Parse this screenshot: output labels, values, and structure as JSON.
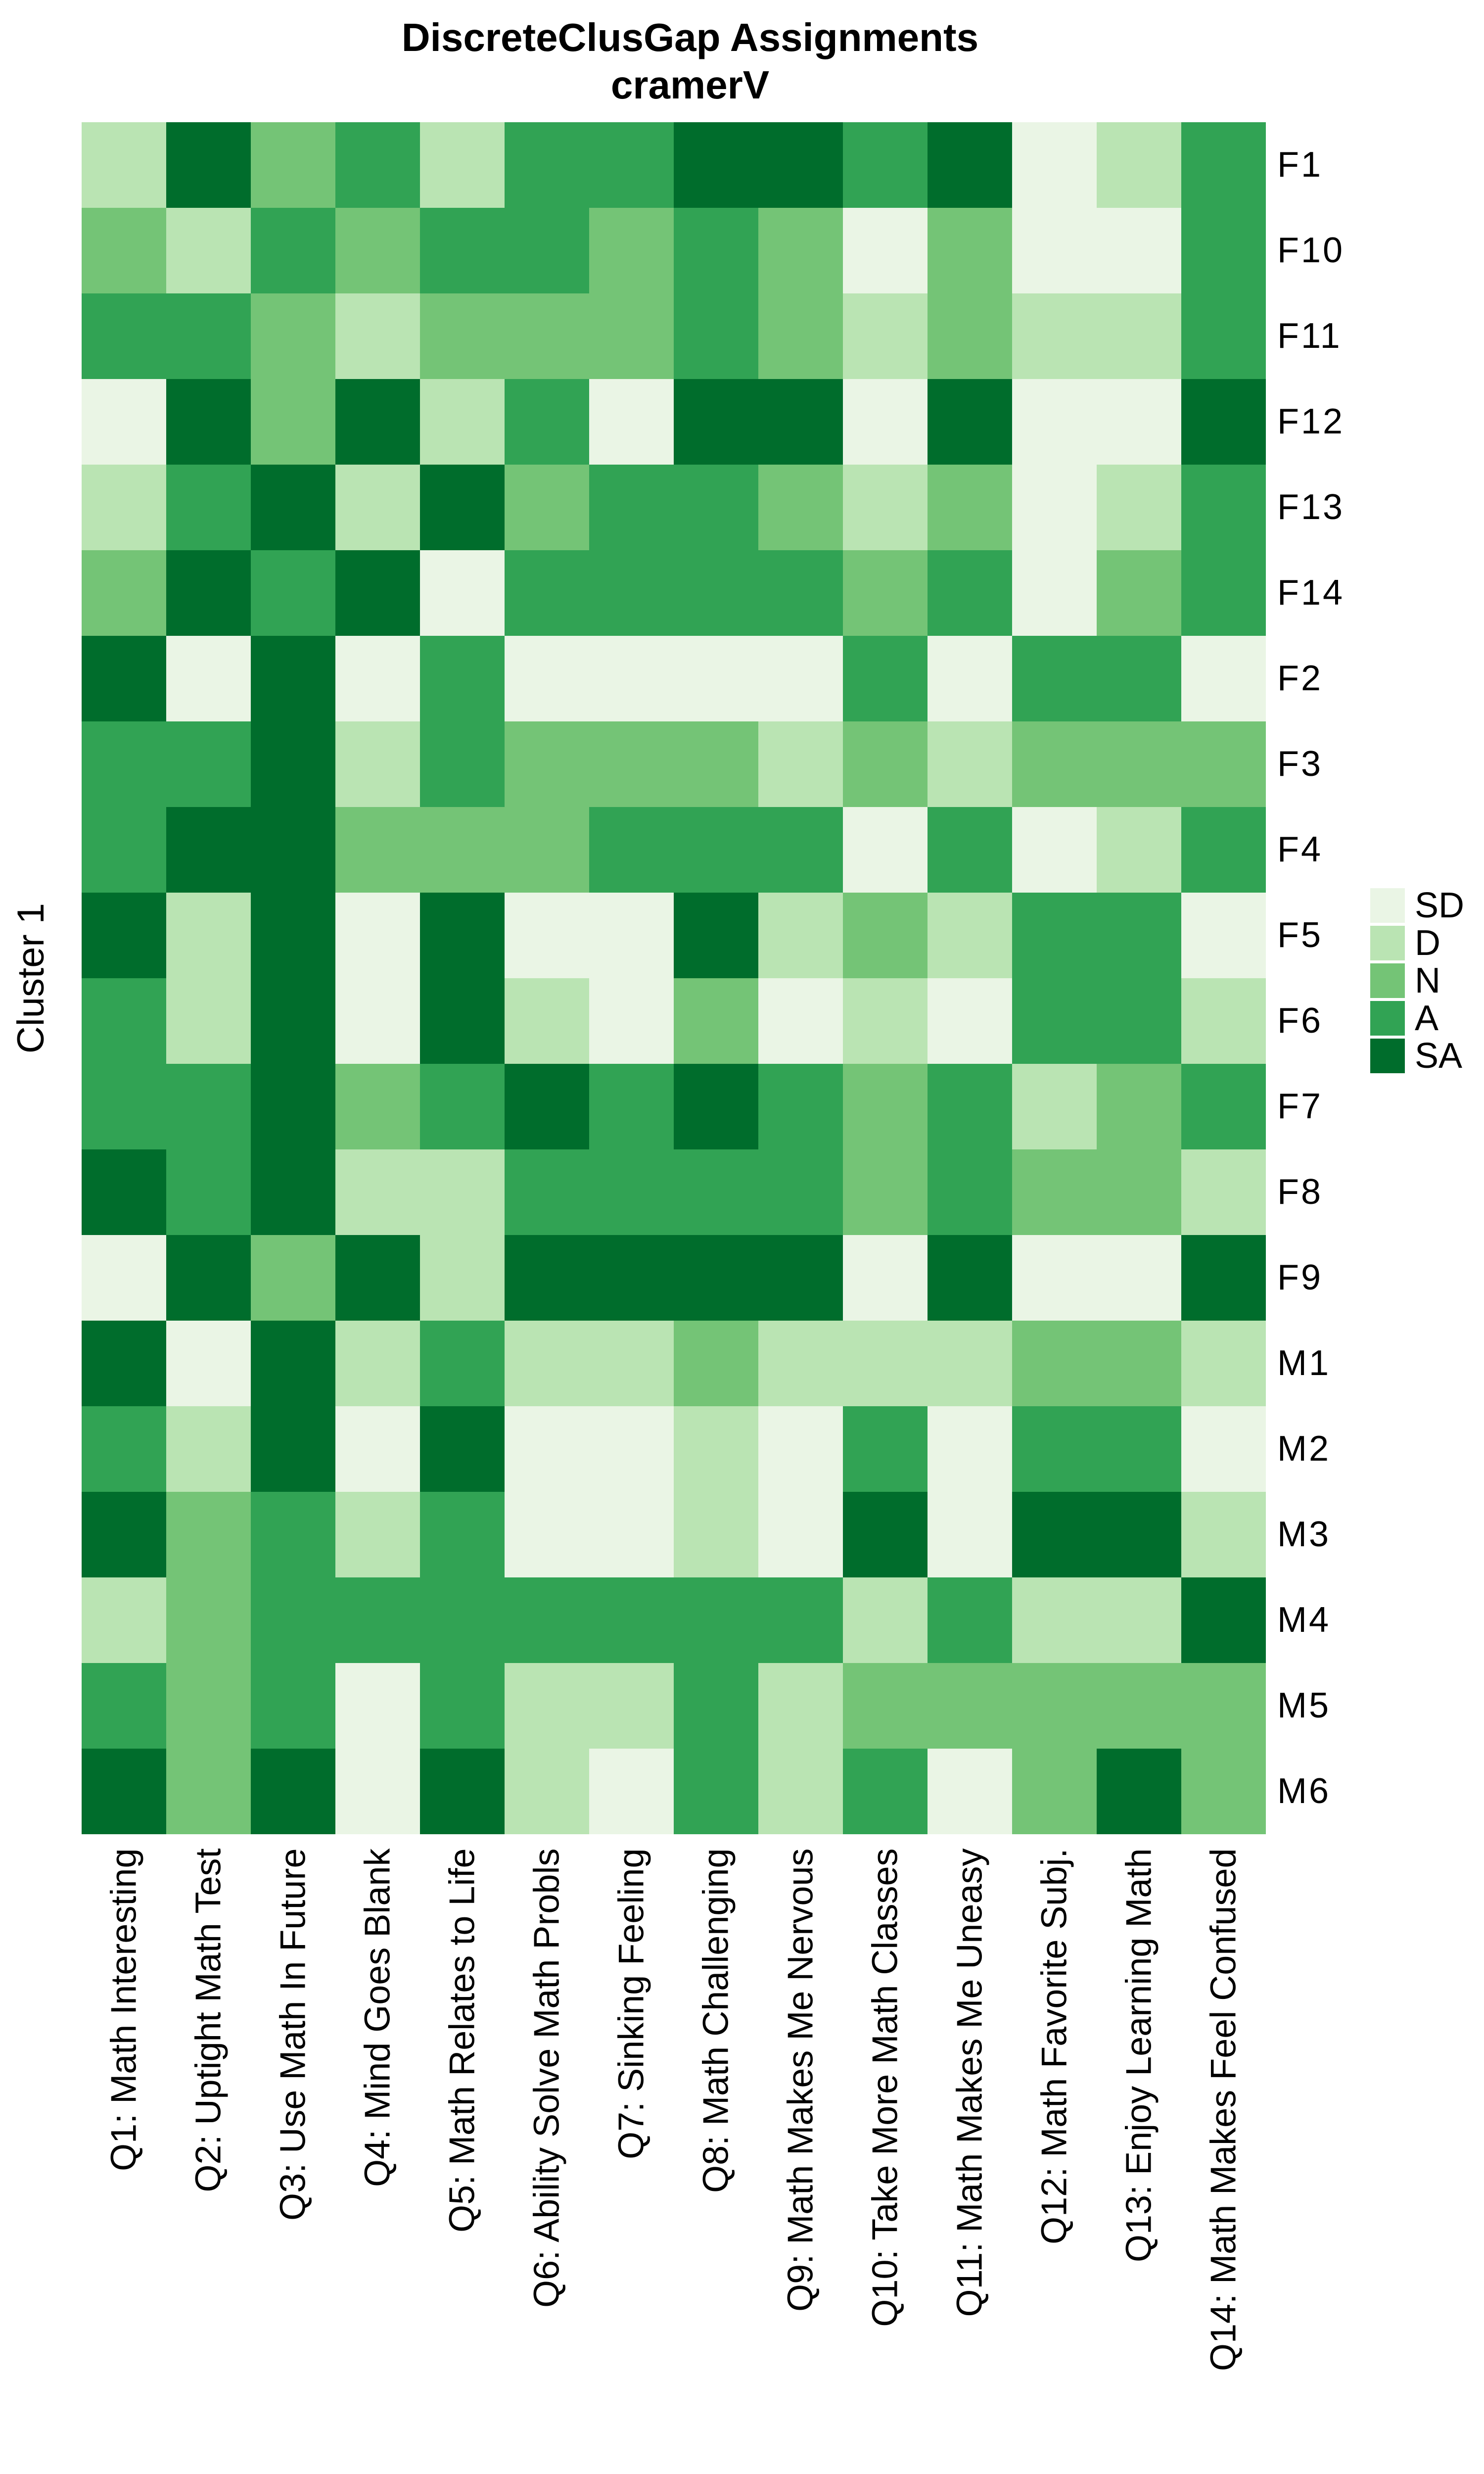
{
  "title": {
    "line1": "DiscreteClusGap Assignments",
    "line2": "cramerV"
  },
  "y_axis_label": "Cluster 1",
  "chart_data": {
    "type": "heatmap",
    "title": "DiscreteClusGap Assignments",
    "subtitle": "cramerV",
    "y_axis_group_label": "Cluster 1",
    "grid": false,
    "legend_position": "right",
    "levels_order": [
      "SD",
      "D",
      "N",
      "A",
      "SA"
    ],
    "level_colors": {
      "SD": "#eaf5e5",
      "D": "#bae4b3",
      "N": "#74c476",
      "A": "#31a354",
      "SA": "#006d2c"
    },
    "legend_entries": [
      {
        "label": "SD",
        "color": "#eaf5e5"
      },
      {
        "label": "D",
        "color": "#bae4b3"
      },
      {
        "label": "N",
        "color": "#74c476"
      },
      {
        "label": "A",
        "color": "#31a354"
      },
      {
        "label": "SA",
        "color": "#006d2c"
      }
    ],
    "x_categories": [
      "Q1: Math Interesting",
      "Q2: Uptight Math Test",
      "Q3: Use Math In Future",
      "Q4: Mind Goes Blank",
      "Q5: Math Relates to Life",
      "Q6: Ability Solve Math Probls",
      "Q7: Sinking Feeling",
      "Q8: Math Challenging",
      "Q9: Math Makes Me Nervous",
      "Q10: Take More Math Classes",
      "Q11: Math Makes Me Uneasy",
      "Q12: Math Favorite Subj.",
      "Q13: Enjoy Learning Math",
      "Q14: Math Makes Feel Confused"
    ],
    "y_categories": [
      "F1",
      "F10",
      "F11",
      "F12",
      "F13",
      "F14",
      "F2",
      "F3",
      "F4",
      "F5",
      "F6",
      "F7",
      "F8",
      "F9",
      "M1",
      "M2",
      "M3",
      "M4",
      "M5",
      "M6"
    ],
    "values": [
      [
        "D",
        "SA",
        "N",
        "A",
        "D",
        "A",
        "A",
        "SA",
        "SA",
        "A",
        "SA",
        "SD",
        "D",
        "A"
      ],
      [
        "N",
        "D",
        "A",
        "N",
        "A",
        "A",
        "N",
        "A",
        "N",
        "SD",
        "N",
        "SD",
        "SD",
        "A"
      ],
      [
        "A",
        "A",
        "N",
        "D",
        "N",
        "N",
        "N",
        "A",
        "N",
        "D",
        "N",
        "D",
        "D",
        "A"
      ],
      [
        "SD",
        "SA",
        "N",
        "SA",
        "D",
        "A",
        "SD",
        "SA",
        "SA",
        "SD",
        "SA",
        "SD",
        "SD",
        "SA"
      ],
      [
        "D",
        "A",
        "SA",
        "D",
        "SA",
        "N",
        "A",
        "A",
        "N",
        "D",
        "N",
        "SD",
        "D",
        "A"
      ],
      [
        "N",
        "SA",
        "A",
        "SA",
        "SD",
        "A",
        "A",
        "A",
        "A",
        "N",
        "A",
        "SD",
        "N",
        "A"
      ],
      [
        "SA",
        "SD",
        "SA",
        "SD",
        "A",
        "SD",
        "SD",
        "SD",
        "SD",
        "A",
        "SD",
        "A",
        "A",
        "SD"
      ],
      [
        "A",
        "A",
        "SA",
        "D",
        "A",
        "N",
        "N",
        "N",
        "D",
        "N",
        "D",
        "N",
        "N",
        "N"
      ],
      [
        "A",
        "SA",
        "SA",
        "N",
        "N",
        "N",
        "A",
        "A",
        "A",
        "SD",
        "A",
        "SD",
        "D",
        "A"
      ],
      [
        "SA",
        "D",
        "SA",
        "SD",
        "SA",
        "SD",
        "SD",
        "SA",
        "D",
        "N",
        "D",
        "A",
        "A",
        "SD"
      ],
      [
        "A",
        "D",
        "SA",
        "SD",
        "SA",
        "D",
        "SD",
        "N",
        "SD",
        "D",
        "SD",
        "A",
        "A",
        "D"
      ],
      [
        "A",
        "A",
        "SA",
        "N",
        "A",
        "SA",
        "A",
        "SA",
        "A",
        "N",
        "A",
        "D",
        "N",
        "A"
      ],
      [
        "SA",
        "A",
        "SA",
        "D",
        "D",
        "A",
        "A",
        "A",
        "A",
        "N",
        "A",
        "N",
        "N",
        "D"
      ],
      [
        "SD",
        "SA",
        "N",
        "SA",
        "D",
        "SA",
        "SA",
        "SA",
        "SA",
        "SD",
        "SA",
        "SD",
        "SD",
        "SA"
      ],
      [
        "SA",
        "SD",
        "SA",
        "D",
        "A",
        "D",
        "D",
        "N",
        "D",
        "D",
        "D",
        "N",
        "N",
        "D"
      ],
      [
        "A",
        "D",
        "SA",
        "SD",
        "SA",
        "SD",
        "SD",
        "D",
        "SD",
        "A",
        "SD",
        "A",
        "A",
        "SD"
      ],
      [
        "SA",
        "N",
        "A",
        "D",
        "A",
        "SD",
        "SD",
        "D",
        "SD",
        "SA",
        "SD",
        "SA",
        "SA",
        "D"
      ],
      [
        "D",
        "N",
        "A",
        "A",
        "A",
        "A",
        "A",
        "A",
        "A",
        "D",
        "A",
        "D",
        "D",
        "SA"
      ],
      [
        "A",
        "N",
        "A",
        "SD",
        "A",
        "D",
        "D",
        "A",
        "D",
        "N",
        "N",
        "N",
        "N",
        "N"
      ],
      [
        "SA",
        "N",
        "SA",
        "SD",
        "SA",
        "D",
        "SD",
        "A",
        "D",
        "A",
        "SD",
        "N",
        "SA",
        "N"
      ]
    ]
  }
}
